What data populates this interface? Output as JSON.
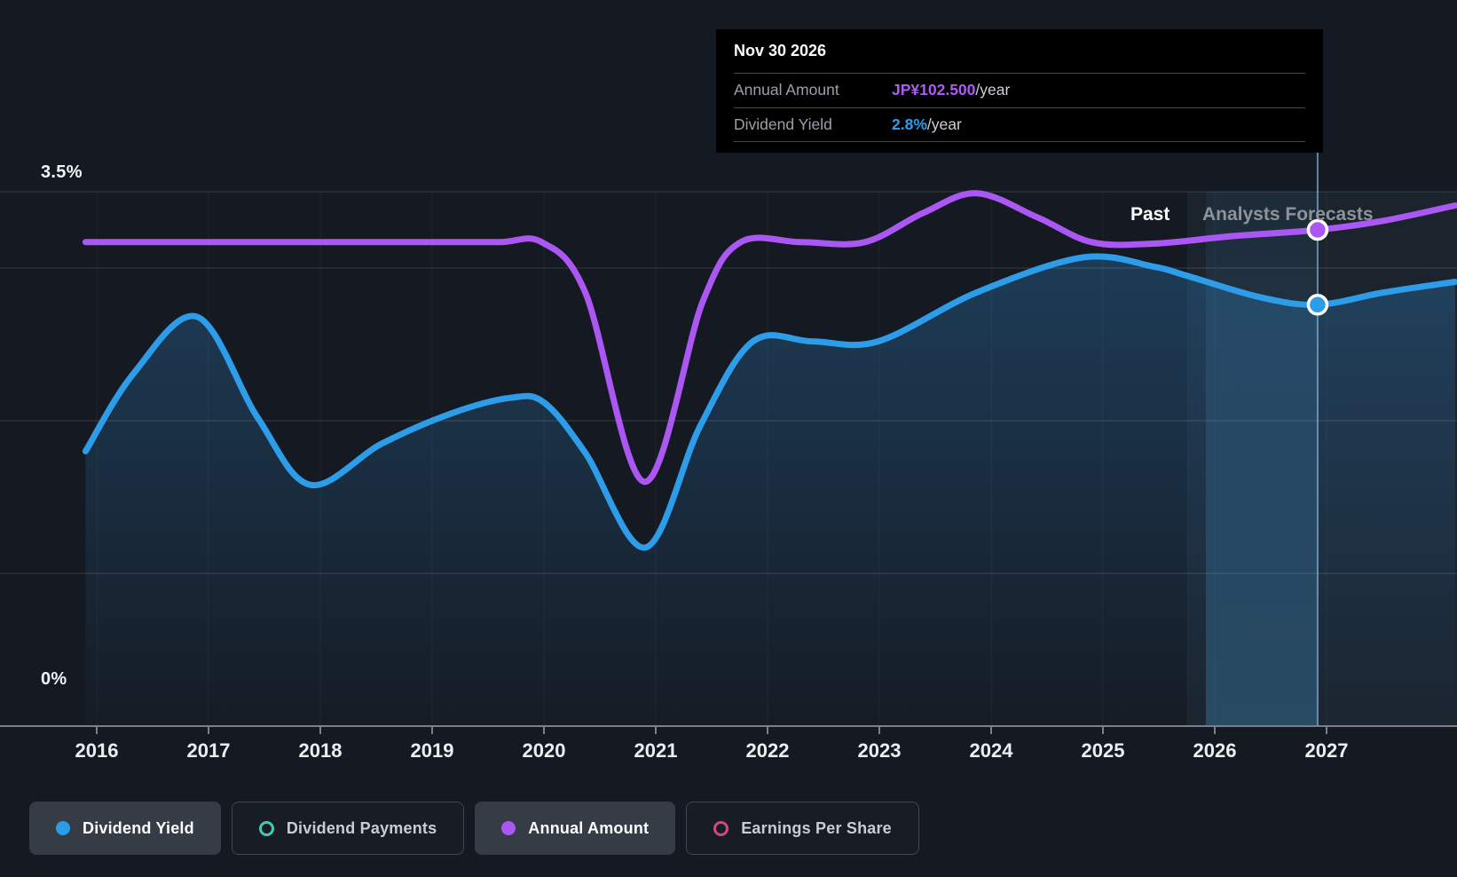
{
  "labels": {
    "y_max": "3.5%",
    "y_min": "0%",
    "past": "Past",
    "forecast": "Analysts Forecasts"
  },
  "tooltip": {
    "date": "Nov 30 2026",
    "rows": [
      {
        "label": "Annual Amount",
        "value": "JP¥102.500",
        "suffix": "/year",
        "color": "#ab5cf2"
      },
      {
        "label": "Dividend Yield",
        "value": "2.8%",
        "suffix": "/year",
        "color": "#2b9df0"
      }
    ]
  },
  "legend": {
    "items": [
      {
        "label": "Dividend Yield",
        "marker": "dot",
        "color": "#2b9ce8",
        "active": true
      },
      {
        "label": "Dividend Payments",
        "marker": "ring",
        "color": "#45c8b4",
        "active": false
      },
      {
        "label": "Annual Amount",
        "marker": "dot",
        "color": "#ab57f4",
        "active": true
      },
      {
        "label": "Earnings Per Share",
        "marker": "ring",
        "color": "#d04a7e",
        "active": false
      }
    ]
  },
  "colors": {
    "background": "#151a22",
    "tooltip_bg": "#000000",
    "blue": "#2d9de9",
    "purple": "#ab57f4",
    "grid": "rgba(255,255,255,0.10)",
    "year_grid": "rgba(255,255,255,0.045)",
    "axis": "#7a8088",
    "tick_label": "#eceef0",
    "forecast_overlay": "rgba(140,180,220,0.06)",
    "hover_band_top": "rgba(70,150,205,0.07)",
    "hover_band_bottom": "rgba(70,160,215,0.30)",
    "hover_line": "rgba(130,180,220,0.70)",
    "area_top": "rgba(45,125,190,0.34)",
    "area_bottom": "rgba(45,125,190,0.02)",
    "marker_stroke": "#ffffff"
  },
  "chart_data": {
    "type": "area-line",
    "title": "Dividend history and forecast",
    "x_ticks": [
      2016,
      2017,
      2018,
      2019,
      2020,
      2021,
      2022,
      2023,
      2024,
      2025,
      2026,
      2027
    ],
    "x_range": [
      2015.9,
      2028.17
    ],
    "y_axis": {
      "min": 0,
      "max": 3.5,
      "unit": "%",
      "labels_shown": [
        "3.5%",
        "0%"
      ]
    },
    "gridlines_pct": [
      3.5,
      3,
      2,
      1
    ],
    "past_boundary_year": 2025.75,
    "hover": {
      "date": "Nov 30 2026",
      "x_year": 2026.92,
      "band_start_year": 2025.92,
      "dividend_yield_pct": 2.76,
      "annual_amount_plot_pct": 3.25,
      "annual_amount_value": "JP¥102.500"
    },
    "series": [
      {
        "name": "Dividend Yield",
        "style": "area",
        "unit": "%",
        "color": "#2d9de9",
        "points": [
          [
            2015.9,
            1.8
          ],
          [
            2016.33,
            2.31
          ],
          [
            2016.9,
            2.68
          ],
          [
            2017.44,
            2.02
          ],
          [
            2017.91,
            1.58
          ],
          [
            2018.55,
            1.85
          ],
          [
            2019.18,
            2.05
          ],
          [
            2019.7,
            2.15
          ],
          [
            2020.0,
            2.12
          ],
          [
            2020.37,
            1.79
          ],
          [
            2020.91,
            1.17
          ],
          [
            2021.4,
            1.97
          ],
          [
            2021.87,
            2.52
          ],
          [
            2022.4,
            2.52
          ],
          [
            2022.99,
            2.52
          ],
          [
            2023.87,
            2.84
          ],
          [
            2024.82,
            3.07
          ],
          [
            2025.45,
            3.01
          ],
          [
            2025.75,
            2.95
          ],
          [
            2026.4,
            2.81
          ],
          [
            2026.92,
            2.76
          ],
          [
            2027.51,
            2.84
          ],
          [
            2028.15,
            2.91
          ]
        ]
      },
      {
        "name": "Annual Amount",
        "style": "line",
        "unit": "plot-position-pct",
        "color": "#ab57f4",
        "points": [
          [
            2015.9,
            3.17
          ],
          [
            2017.0,
            3.17
          ],
          [
            2018.0,
            3.17
          ],
          [
            2019.0,
            3.17
          ],
          [
            2019.6,
            3.17
          ],
          [
            2019.98,
            3.17
          ],
          [
            2020.37,
            2.84
          ],
          [
            2020.9,
            1.6
          ],
          [
            2021.42,
            2.78
          ],
          [
            2021.76,
            3.17
          ],
          [
            2022.3,
            3.17
          ],
          [
            2022.87,
            3.17
          ],
          [
            2023.39,
            3.36
          ],
          [
            2023.87,
            3.49
          ],
          [
            2024.42,
            3.33
          ],
          [
            2024.9,
            3.17
          ],
          [
            2025.45,
            3.16
          ],
          [
            2026.17,
            3.21
          ],
          [
            2026.92,
            3.25
          ],
          [
            2027.51,
            3.31
          ],
          [
            2028.15,
            3.41
          ]
        ]
      }
    ]
  }
}
